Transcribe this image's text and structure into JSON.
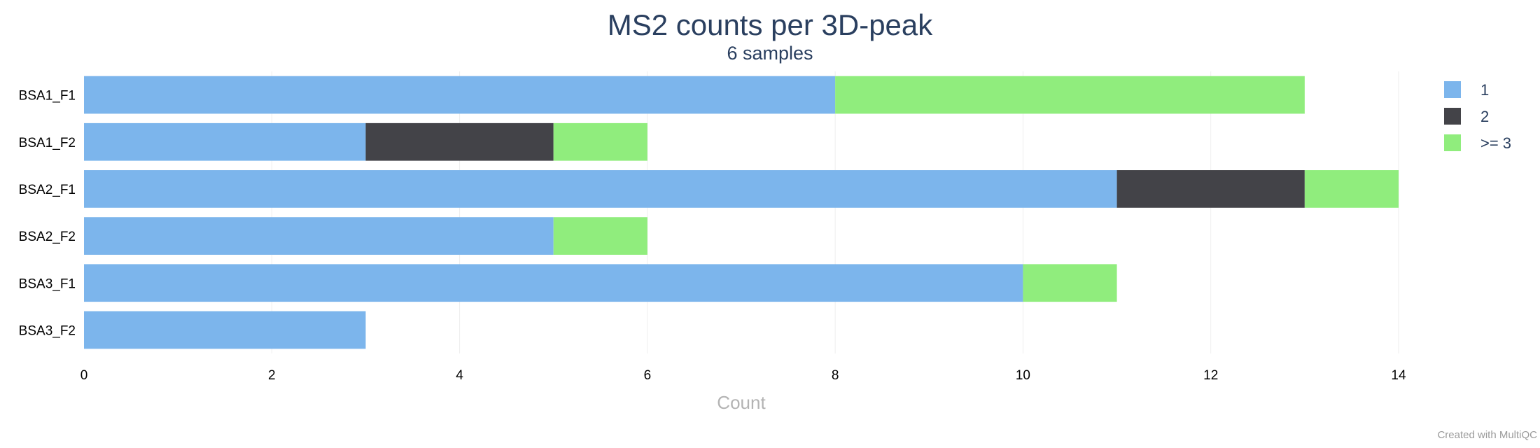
{
  "chart_data": {
    "type": "bar",
    "orientation": "horizontal",
    "stacked": true,
    "title": "MS2 counts per 3D-peak",
    "subtitle": "6 samples",
    "xlabel": "Count",
    "ylabel": "",
    "xlim": [
      0,
      14
    ],
    "x_ticks": [
      0,
      2,
      4,
      6,
      8,
      10,
      12,
      14
    ],
    "grid": true,
    "legend_position": "top-right",
    "categories": [
      "BSA1_F1",
      "BSA1_F2",
      "BSA2_F1",
      "BSA2_F2",
      "BSA3_F1",
      "BSA3_F2"
    ],
    "series": [
      {
        "name": "1",
        "color": "#7cb5ec",
        "values": [
          8,
          3,
          11,
          5,
          10,
          3
        ]
      },
      {
        "name": "2",
        "color": "#434348",
        "values": [
          0,
          2,
          2,
          0,
          0,
          0
        ]
      },
      {
        "name": ">= 3",
        "color": "#90ed7d",
        "values": [
          5,
          1,
          1,
          1,
          1,
          0
        ]
      }
    ]
  },
  "credit": "Created with MultiQC"
}
